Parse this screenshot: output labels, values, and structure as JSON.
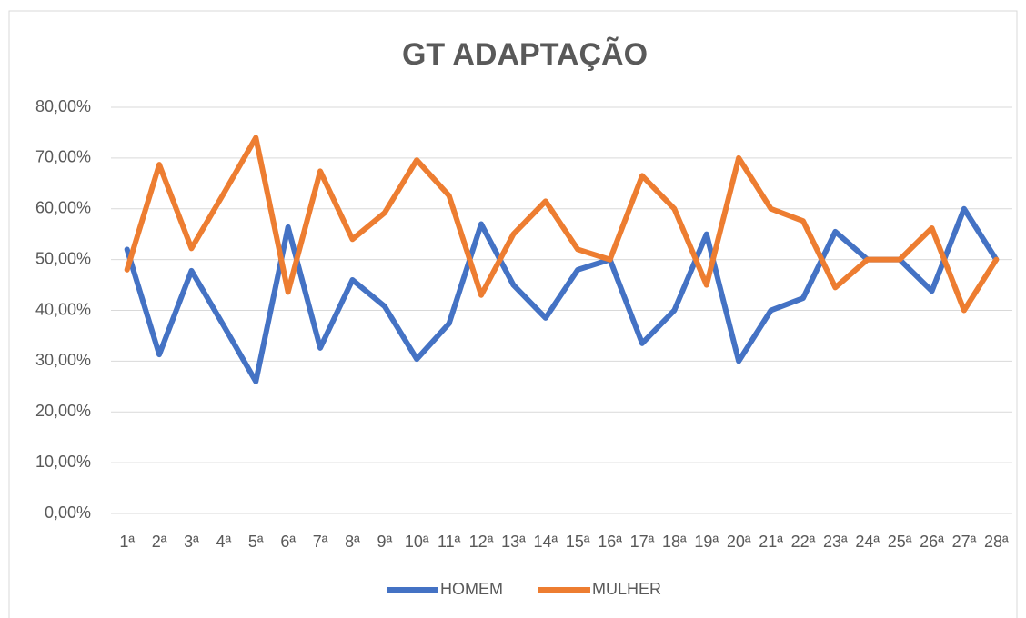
{
  "chart_data": {
    "type": "line",
    "title": "GT ADAPTAÇÃO",
    "categories": [
      "1ª",
      "2ª",
      "3ª",
      "4ª",
      "5ª",
      "6ª",
      "7ª",
      "8ª",
      "9ª",
      "10ª",
      "11ª",
      "12ª",
      "13ª",
      "14ª",
      "15ª",
      "16ª",
      "17ª",
      "18ª",
      "19ª",
      "20ª",
      "21ª",
      "22ª",
      "23ª",
      "24ª",
      "25ª",
      "26ª",
      "27ª",
      "28ª"
    ],
    "series": [
      {
        "name": "HOMEM",
        "color": "#4472c4",
        "values": [
          52,
          31.3,
          47.8,
          37,
          26,
          56.4,
          32.6,
          46,
          40.8,
          30.4,
          37.4,
          57,
          45,
          38.5,
          48,
          50,
          33.5,
          40,
          55,
          30,
          40,
          42.4,
          55.5,
          50,
          50,
          43.8,
          60,
          50
        ]
      },
      {
        "name": "MULHER",
        "color": "#ed7d31",
        "values": [
          48,
          68.7,
          52.2,
          63,
          74,
          43.6,
          67.4,
          54,
          59.2,
          69.6,
          62.6,
          43,
          55,
          61.5,
          52,
          50,
          66.5,
          60,
          45,
          70,
          60,
          57.6,
          44.5,
          50,
          50,
          56.2,
          40,
          50
        ]
      }
    ],
    "ylim": [
      0,
      80
    ],
    "yticks": [
      {
        "value": 0,
        "label": "0,00%"
      },
      {
        "value": 10,
        "label": "10,00%"
      },
      {
        "value": 20,
        "label": "20,00%"
      },
      {
        "value": 30,
        "label": "30,00%"
      },
      {
        "value": 40,
        "label": "40,00%"
      },
      {
        "value": 50,
        "label": "50,00%"
      },
      {
        "value": 60,
        "label": "60,00%"
      },
      {
        "value": 70,
        "label": "70,00%"
      },
      {
        "value": 80,
        "label": "80,00%"
      }
    ],
    "grid": true,
    "legend": "bottom"
  }
}
